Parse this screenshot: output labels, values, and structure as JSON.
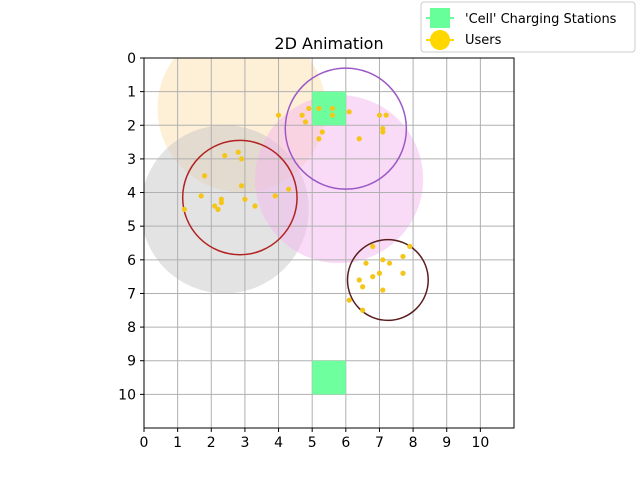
{
  "chart_data": {
    "type": "scatter",
    "title": "2D Animation",
    "xlabel": "",
    "ylabel": "",
    "xlim": [
      0,
      11
    ],
    "ylim": [
      11,
      0
    ],
    "y_axis_inverted": true,
    "x_ticks": [
      "0",
      "1",
      "2",
      "3",
      "4",
      "5",
      "6",
      "7",
      "8",
      "9",
      "10"
    ],
    "y_ticks": [
      "0",
      "1",
      "2",
      "3",
      "4",
      "5",
      "6",
      "7",
      "8",
      "9",
      "10"
    ],
    "grid": true,
    "legend_placement": "top-right, outside plot",
    "legend": [
      {
        "label": "'Cell' Charging Stations",
        "marker": "square",
        "color": "#66ff99"
      },
      {
        "label": "Users",
        "marker": "circle",
        "color": "#ffd700"
      }
    ],
    "charging_stations": [
      {
        "x": 5.5,
        "y": 1.5,
        "color": "#66ff99"
      },
      {
        "x": 5.5,
        "y": 9.5,
        "color": "#66ff99"
      }
    ],
    "coverage_areas": [
      {
        "cx": 2.9,
        "cy": 1.5,
        "r": 2.5,
        "fill": "#fde0b0"
      },
      {
        "cx": 2.4,
        "cy": 4.5,
        "r": 2.5,
        "fill": "#c8c8c8"
      },
      {
        "cx": 5.8,
        "cy": 3.6,
        "r": 2.5,
        "fill": "#f5b8f0"
      }
    ],
    "clusters": [
      {
        "cx": 6.0,
        "cy": 2.1,
        "r": 1.8,
        "stroke": "#9b59c6"
      },
      {
        "cx": 2.85,
        "cy": 4.15,
        "r": 1.7,
        "stroke": "#b22222"
      },
      {
        "cx": 7.25,
        "cy": 6.6,
        "r": 1.2,
        "stroke": "#5a1e1e"
      }
    ],
    "users": [
      {
        "x": 4.9,
        "y": 1.5
      },
      {
        "x": 5.2,
        "y": 1.5
      },
      {
        "x": 5.6,
        "y": 1.5
      },
      {
        "x": 6.1,
        "y": 1.6
      },
      {
        "x": 4.7,
        "y": 1.7
      },
      {
        "x": 5.6,
        "y": 1.7
      },
      {
        "x": 7.0,
        "y": 1.7
      },
      {
        "x": 7.2,
        "y": 1.7
      },
      {
        "x": 4.8,
        "y": 1.9
      },
      {
        "x": 4.0,
        "y": 1.7
      },
      {
        "x": 7.1,
        "y": 2.1
      },
      {
        "x": 7.1,
        "y": 2.2
      },
      {
        "x": 5.3,
        "y": 2.2
      },
      {
        "x": 5.2,
        "y": 2.4
      },
      {
        "x": 6.4,
        "y": 2.4
      },
      {
        "x": 2.8,
        "y": 2.8
      },
      {
        "x": 2.4,
        "y": 2.9
      },
      {
        "x": 2.9,
        "y": 3.0
      },
      {
        "x": 1.8,
        "y": 3.5
      },
      {
        "x": 2.9,
        "y": 3.8
      },
      {
        "x": 4.3,
        "y": 3.9
      },
      {
        "x": 1.7,
        "y": 4.1
      },
      {
        "x": 3.9,
        "y": 4.1
      },
      {
        "x": 3.0,
        "y": 4.2
      },
      {
        "x": 2.3,
        "y": 4.2
      },
      {
        "x": 2.3,
        "y": 4.3
      },
      {
        "x": 3.3,
        "y": 4.4
      },
      {
        "x": 2.1,
        "y": 4.4
      },
      {
        "x": 2.2,
        "y": 4.5
      },
      {
        "x": 1.2,
        "y": 4.5
      },
      {
        "x": 6.8,
        "y": 5.6
      },
      {
        "x": 7.9,
        "y": 5.6
      },
      {
        "x": 7.7,
        "y": 5.9
      },
      {
        "x": 7.1,
        "y": 6.0
      },
      {
        "x": 6.6,
        "y": 6.1
      },
      {
        "x": 7.3,
        "y": 6.1
      },
      {
        "x": 7.0,
        "y": 6.4
      },
      {
        "x": 7.7,
        "y": 6.4
      },
      {
        "x": 6.8,
        "y": 6.5
      },
      {
        "x": 6.4,
        "y": 6.6
      },
      {
        "x": 6.5,
        "y": 6.8
      },
      {
        "x": 7.1,
        "y": 6.9
      },
      {
        "x": 6.1,
        "y": 7.2
      },
      {
        "x": 6.5,
        "y": 7.5
      }
    ],
    "user_color": "#f5c518"
  }
}
